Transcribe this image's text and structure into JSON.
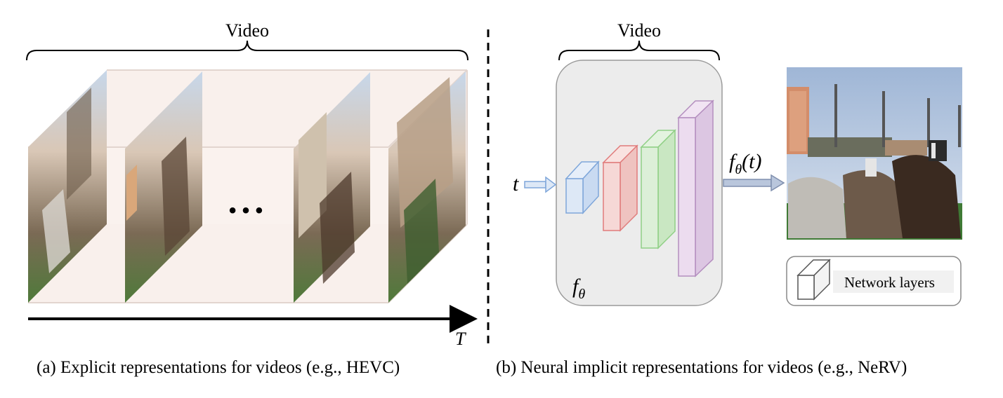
{
  "left_panel": {
    "video_label": "Video",
    "ellipsis": "• • •",
    "axis_label": "T",
    "caption": "(a)  Explicit representations for videos (e.g., HEVC)"
  },
  "right_panel": {
    "video_label": "Video",
    "input_label": "t",
    "network_label": "fθ",
    "output_label": "fθ(t)",
    "legend_label": "Network layers",
    "caption": "(b) Neural implicit representations for videos (e.g., NeRV)"
  },
  "colors": {
    "layer_blue": "#dde8f6",
    "layer_red": "#f6d8d6",
    "layer_green": "#dcefd8",
    "layer_purple": "#ecdcef",
    "box_gray": "#ececec",
    "cube_beige": "#f8eeea"
  }
}
